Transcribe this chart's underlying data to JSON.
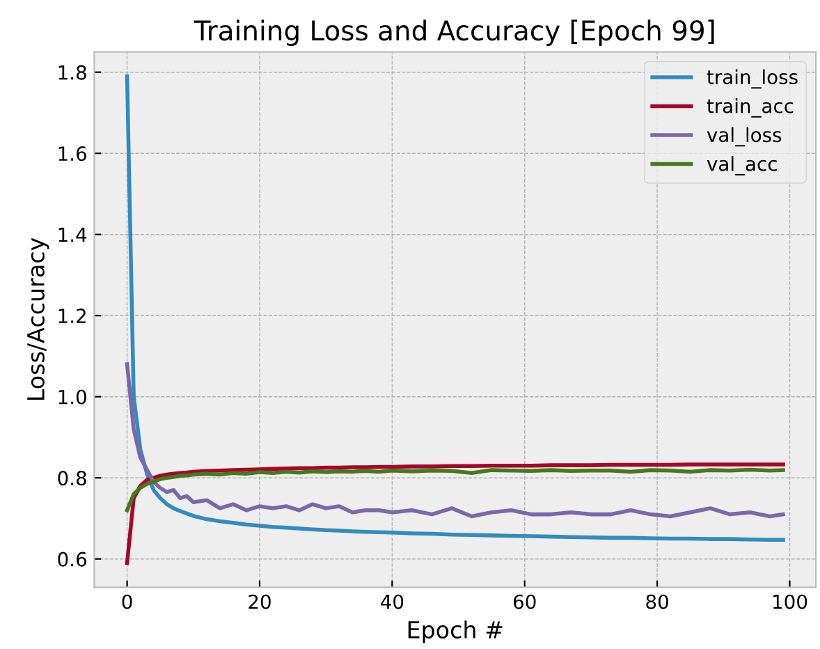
{
  "chart_data": {
    "type": "line",
    "title": "Training Loss and Accuracy [Epoch 99]",
    "xlabel": "Epoch #",
    "ylabel": "Loss/Accuracy",
    "x": [
      0,
      1,
      2,
      3,
      4,
      5,
      6,
      7,
      8,
      9,
      10,
      12,
      14,
      16,
      18,
      20,
      22,
      24,
      26,
      28,
      30,
      32,
      34,
      36,
      38,
      40,
      43,
      46,
      49,
      52,
      55,
      58,
      61,
      64,
      67,
      70,
      73,
      76,
      79,
      82,
      85,
      88,
      91,
      94,
      97,
      99
    ],
    "series": [
      {
        "name": "train_loss",
        "color": "#348abd",
        "values": [
          1.79,
          1.0,
          0.87,
          0.81,
          0.77,
          0.75,
          0.735,
          0.725,
          0.718,
          0.712,
          0.706,
          0.698,
          0.693,
          0.689,
          0.685,
          0.682,
          0.679,
          0.677,
          0.675,
          0.673,
          0.671,
          0.67,
          0.668,
          0.667,
          0.666,
          0.665,
          0.663,
          0.662,
          0.66,
          0.659,
          0.658,
          0.657,
          0.656,
          0.655,
          0.654,
          0.653,
          0.652,
          0.652,
          0.651,
          0.65,
          0.65,
          0.649,
          0.649,
          0.648,
          0.647,
          0.647
        ]
      },
      {
        "name": "train_acc",
        "color": "#a60628",
        "values": [
          0.59,
          0.75,
          0.78,
          0.795,
          0.8,
          0.805,
          0.808,
          0.81,
          0.812,
          0.813,
          0.815,
          0.817,
          0.818,
          0.819,
          0.82,
          0.821,
          0.822,
          0.823,
          0.824,
          0.824,
          0.825,
          0.825,
          0.826,
          0.826,
          0.827,
          0.827,
          0.828,
          0.828,
          0.829,
          0.829,
          0.83,
          0.83,
          0.83,
          0.831,
          0.831,
          0.831,
          0.832,
          0.832,
          0.832,
          0.832,
          0.833,
          0.833,
          0.833,
          0.833,
          0.833,
          0.833
        ]
      },
      {
        "name": "val_loss",
        "color": "#7a68a6",
        "values": [
          1.08,
          0.92,
          0.85,
          0.82,
          0.79,
          0.775,
          0.765,
          0.77,
          0.75,
          0.755,
          0.74,
          0.745,
          0.725,
          0.735,
          0.72,
          0.73,
          0.725,
          0.73,
          0.72,
          0.735,
          0.725,
          0.73,
          0.715,
          0.72,
          0.72,
          0.715,
          0.72,
          0.71,
          0.725,
          0.705,
          0.715,
          0.72,
          0.71,
          0.71,
          0.715,
          0.71,
          0.71,
          0.72,
          0.71,
          0.705,
          0.715,
          0.725,
          0.71,
          0.715,
          0.705,
          0.71
        ]
      },
      {
        "name": "val_acc",
        "color": "#467821",
        "values": [
          0.72,
          0.76,
          0.775,
          0.785,
          0.79,
          0.797,
          0.8,
          0.802,
          0.805,
          0.806,
          0.808,
          0.81,
          0.808,
          0.812,
          0.81,
          0.814,
          0.812,
          0.815,
          0.813,
          0.816,
          0.814,
          0.816,
          0.815,
          0.817,
          0.815,
          0.818,
          0.816,
          0.818,
          0.817,
          0.812,
          0.819,
          0.818,
          0.817,
          0.819,
          0.817,
          0.818,
          0.818,
          0.815,
          0.819,
          0.818,
          0.815,
          0.819,
          0.818,
          0.82,
          0.818,
          0.819
        ]
      }
    ],
    "xlim": [
      -4.95,
      103.95
    ],
    "ylim": [
      0.53,
      1.85
    ],
    "xticks": [
      0,
      20,
      40,
      60,
      80,
      100
    ],
    "yticks": [
      0.6,
      0.8,
      {
        "value": 1.0,
        "label": "1.0"
      },
      1.2,
      1.4,
      1.6,
      1.8
    ],
    "grid": true,
    "legend": "top right",
    "marker": "none",
    "line_style": "solid"
  }
}
